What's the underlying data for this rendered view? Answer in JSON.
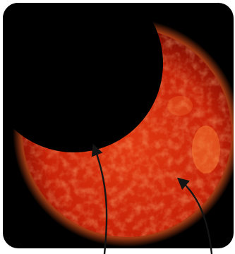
{
  "image": {
    "subject": "partial-solar-eclipse",
    "colors": {
      "sky": "#000000",
      "sun_core": "#e23a12",
      "sun_mid": "#c82208",
      "sun_edge": "#7a0c02",
      "corona": "#ff5a1e",
      "highlight": "#ff8a3a",
      "arrow": "#141414",
      "background": "#ffffff"
    },
    "arrows": [
      {
        "name": "arrow-to-moon-edge"
      },
      {
        "name": "arrow-to-sun-surface"
      }
    ]
  }
}
